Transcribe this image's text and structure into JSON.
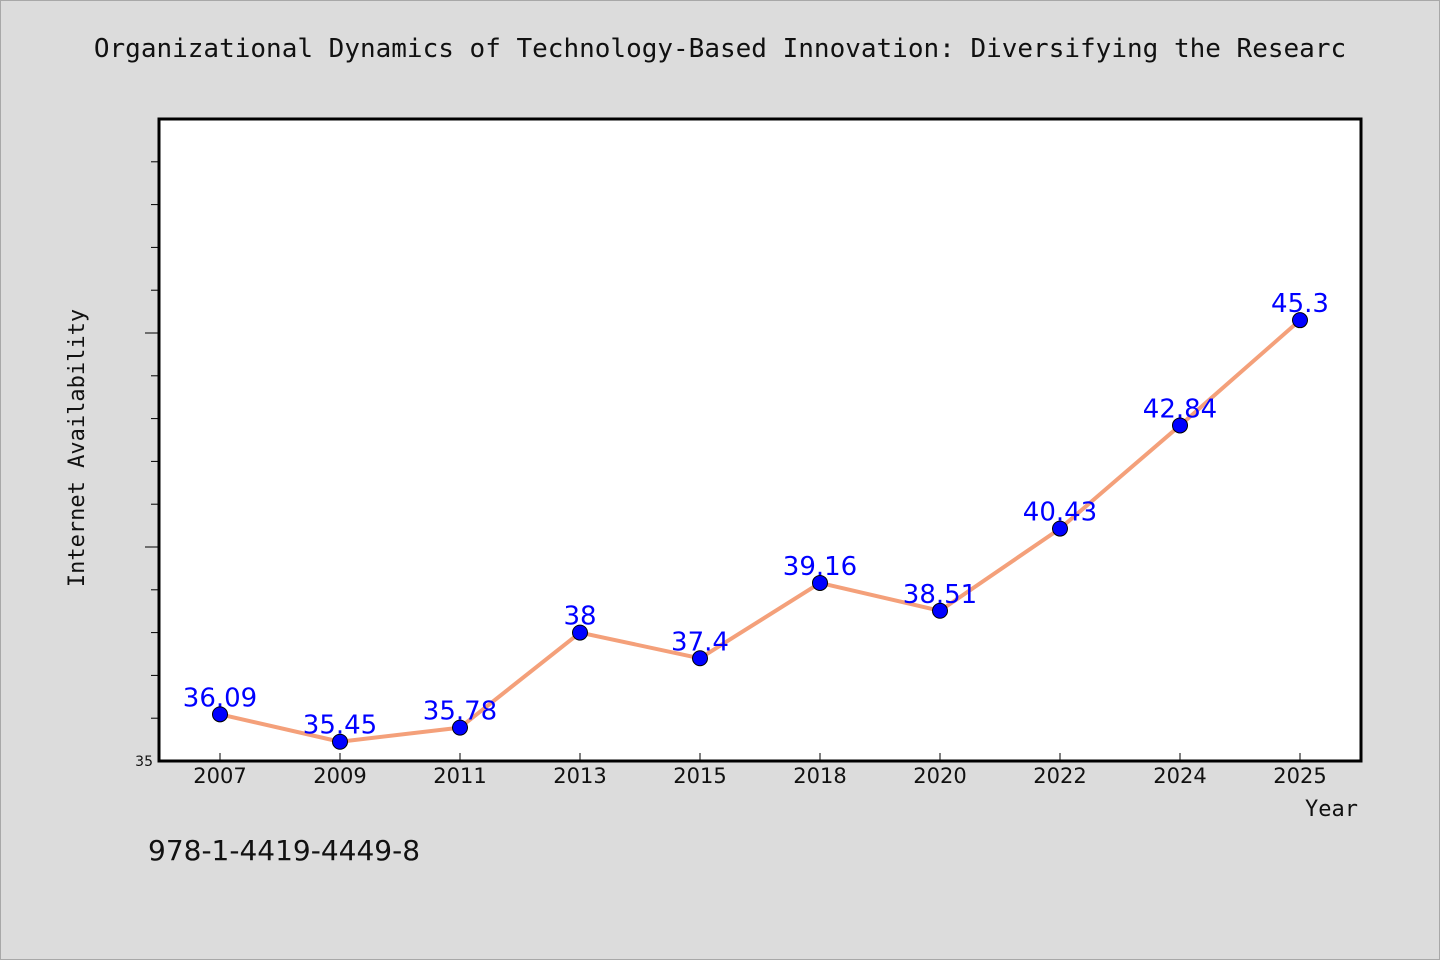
{
  "chart_data": {
    "type": "line",
    "title": "Organizational Dynamics of Technology-Based Innovation: Diversifying the Researc",
    "xlabel": "Year",
    "ylabel": "Internet Availability",
    "categories": [
      "2007",
      "2009",
      "2011",
      "2013",
      "2015",
      "2018",
      "2020",
      "2022",
      "2024",
      "2025"
    ],
    "series": [
      {
        "values": [
          36.09,
          35.45,
          35.78,
          38,
          37.4,
          39.16,
          38.51,
          40.43,
          42.84,
          45.3
        ],
        "labels": [
          "36.09",
          "35.45",
          "35.78",
          "38",
          "37.4",
          "39.16",
          "38.51",
          "40.43",
          "42.84",
          "45.3"
        ]
      }
    ],
    "ylim": [
      35,
      50
    ],
    "y_tick_labels": [
      {
        "value": 35,
        "label": "35"
      }
    ],
    "grid": false,
    "line_color": "#f4a07a",
    "marker_color": "#0000ff",
    "label_color": "#0000ff"
  },
  "footer": {
    "isbn": "978-1-4419-4449-8"
  }
}
